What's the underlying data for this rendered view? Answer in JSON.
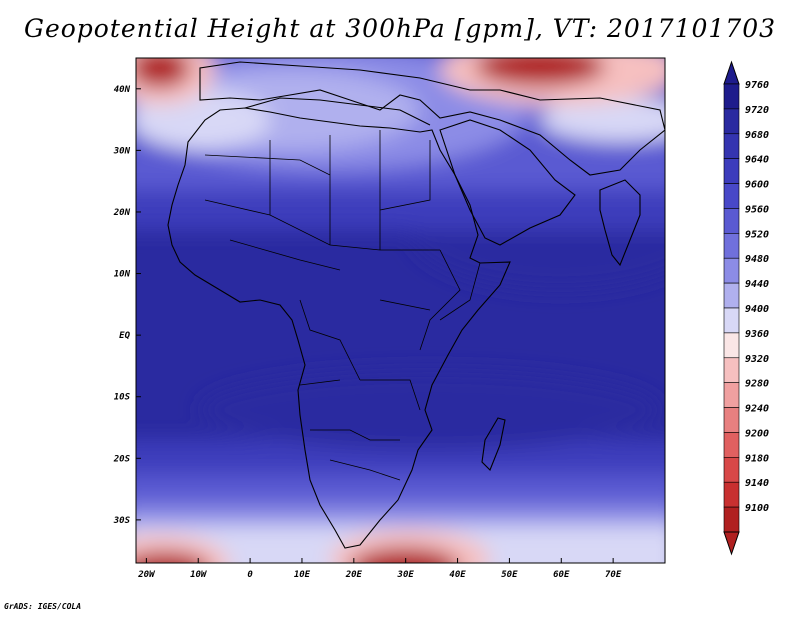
{
  "title": "Geopotential Height at 300hPa [gpm], VT: 2017101703",
  "credit": "GrADS: IGES/COLA",
  "map": {
    "lon_range": [
      -22,
      80
    ],
    "lat_range": [
      -37,
      45
    ],
    "lon_ticks": [
      {
        "value": -20,
        "label": "20W"
      },
      {
        "value": -10,
        "label": "10W"
      },
      {
        "value": 0,
        "label": "0"
      },
      {
        "value": 10,
        "label": "10E"
      },
      {
        "value": 20,
        "label": "20E"
      },
      {
        "value": 30,
        "label": "30E"
      },
      {
        "value": 40,
        "label": "40E"
      },
      {
        "value": 50,
        "label": "50E"
      },
      {
        "value": 60,
        "label": "60E"
      },
      {
        "value": 70,
        "label": "70E"
      }
    ],
    "lat_ticks": [
      {
        "value": 40,
        "label": "40N"
      },
      {
        "value": 30,
        "label": "30N"
      },
      {
        "value": 20,
        "label": "20N"
      },
      {
        "value": 10,
        "label": "10N"
      },
      {
        "value": 0,
        "label": "EQ"
      },
      {
        "value": -10,
        "label": "10S"
      },
      {
        "value": -20,
        "label": "20S"
      },
      {
        "value": -30,
        "label": "30S"
      }
    ]
  },
  "colorbar": {
    "levels": [
      {
        "label": "9760",
        "color": "#1e1c8c"
      },
      {
        "label": "9720",
        "color": "#2a2aa0"
      },
      {
        "label": "9680",
        "color": "#3434b0"
      },
      {
        "label": "9640",
        "color": "#3c3cbc"
      },
      {
        "label": "9600",
        "color": "#4848c8"
      },
      {
        "label": "9560",
        "color": "#5a5ad2"
      },
      {
        "label": "9520",
        "color": "#7070dc"
      },
      {
        "label": "9480",
        "color": "#8c8ce6"
      },
      {
        "label": "9440",
        "color": "#b0b0ee"
      },
      {
        "label": "9400",
        "color": "#d8d8f6"
      },
      {
        "label": "9360",
        "color": "#fae6e6"
      },
      {
        "label": "9320",
        "color": "#f6c0c0"
      },
      {
        "label": "9280",
        "color": "#f0a0a0"
      },
      {
        "label": "9240",
        "color": "#e88080"
      },
      {
        "label": "9200",
        "color": "#e06060"
      },
      {
        "label": "9180",
        "color": "#d84848"
      },
      {
        "label": "9140",
        "color": "#c83030"
      },
      {
        "label": "9100",
        "color": "#b02020"
      }
    ]
  },
  "field_colors": {
    "deep": "#2a2aa0",
    "mid": "#3c3cbc",
    "light": "#5a5ad2",
    "pale": "#8c8ce6",
    "paler": "#b0b0ee",
    "palest": "#d8d8f6",
    "pink": "#f6c0c0",
    "red": "#e06060",
    "darkred": "#b02020",
    "coast": "#000000"
  }
}
